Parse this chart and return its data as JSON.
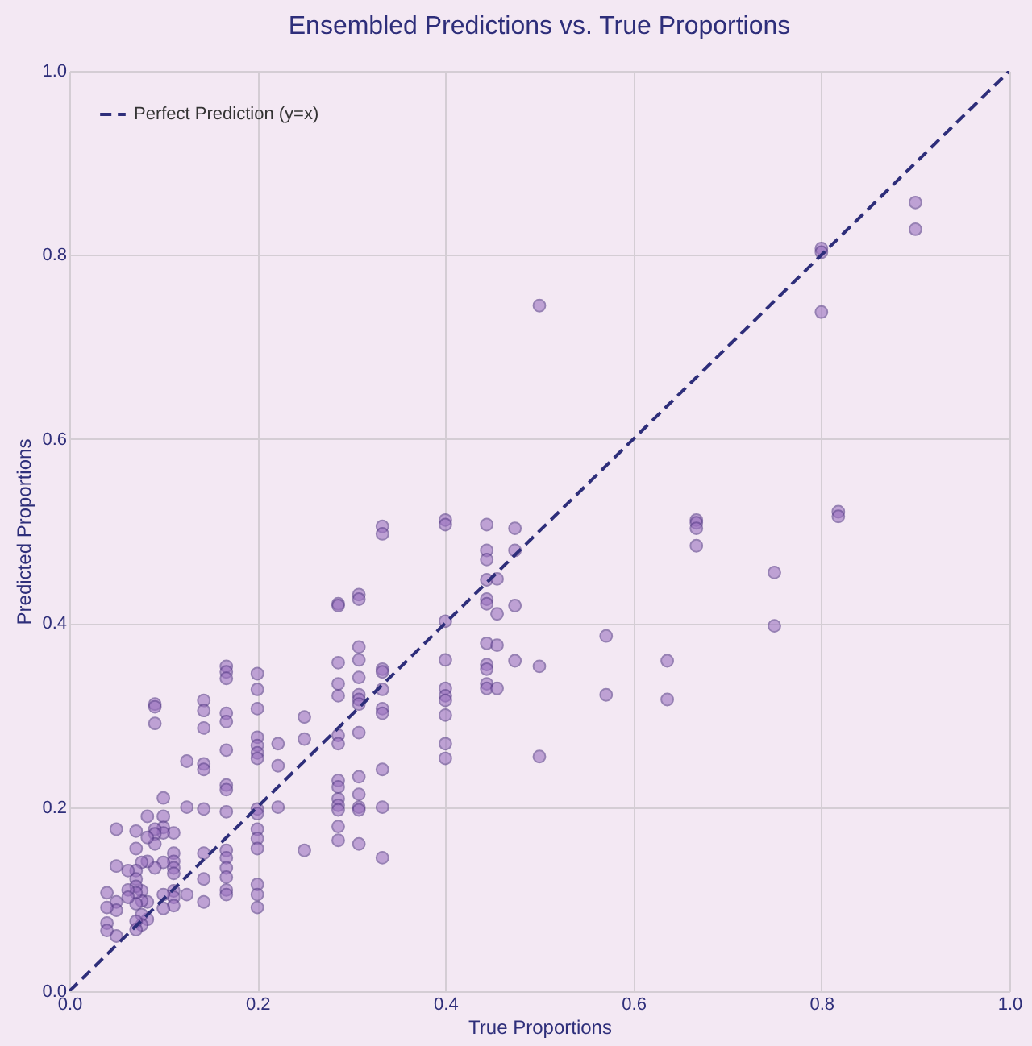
{
  "chart_data": {
    "type": "scatter",
    "title": "Ensembled Predictions vs. True Proportions",
    "xlabel": "True Proportions",
    "ylabel": "Predicted Proportions",
    "xlim": [
      0,
      1
    ],
    "ylim": [
      0,
      1
    ],
    "xticks": [
      {
        "value": 0,
        "label": "0.0"
      },
      0.2,
      0.4,
      0.6,
      0.8,
      {
        "value": 1,
        "label": "1.0"
      }
    ],
    "yticks": [
      {
        "value": 0,
        "label": "0.0"
      },
      0.2,
      0.4,
      0.6,
      0.8,
      {
        "value": 1,
        "label": "1.0"
      }
    ],
    "grid": true,
    "legend": "top left",
    "series": [
      {
        "color": "#9b72c0",
        "marker": "circle",
        "x": [
          0.2,
          0.2,
          0.2,
          0.2,
          0.2,
          0.2,
          0.2,
          0.2,
          0.2,
          0.2,
          0.2,
          0.2,
          0.2,
          0.2,
          0.2,
          0.167,
          0.167,
          0.167,
          0.167,
          0.167,
          0.167,
          0.167,
          0.167,
          0.167,
          0.167,
          0.167,
          0.167,
          0.167,
          0.167,
          0.167,
          0.143,
          0.143,
          0.143,
          0.143,
          0.143,
          0.143,
          0.143,
          0.143,
          0.143,
          0.125,
          0.125,
          0.125,
          0.111,
          0.111,
          0.111,
          0.111,
          0.111,
          0.111,
          0.111,
          0.111,
          0.1,
          0.1,
          0.1,
          0.1,
          0.1,
          0.1,
          0.1,
          0.091,
          0.091,
          0.091,
          0.091,
          0.091,
          0.091,
          0.091,
          0.083,
          0.083,
          0.083,
          0.083,
          0.083,
          0.077,
          0.077,
          0.077,
          0.077,
          0.077,
          0.071,
          0.071,
          0.071,
          0.071,
          0.071,
          0.071,
          0.071,
          0.071,
          0.071,
          0.0625,
          0.0625,
          0.0625,
          0.05,
          0.05,
          0.05,
          0.05,
          0.05,
          0.04,
          0.04,
          0.04,
          0.04,
          0.25,
          0.25,
          0.25,
          0.222,
          0.222,
          0.222,
          0.286,
          0.286,
          0.286,
          0.286,
          0.286,
          0.286,
          0.286,
          0.286,
          0.286,
          0.286,
          0.286,
          0.286,
          0.286,
          0.286,
          0.308,
          0.308,
          0.308,
          0.308,
          0.308,
          0.308,
          0.308,
          0.308,
          0.308,
          0.308,
          0.308,
          0.308,
          0.308,
          0.308,
          0.333,
          0.333,
          0.333,
          0.333,
          0.333,
          0.333,
          0.333,
          0.333,
          0.333,
          0.333,
          0.4,
          0.4,
          0.4,
          0.4,
          0.4,
          0.4,
          0.4,
          0.4,
          0.4,
          0.4,
          0.444,
          0.444,
          0.444,
          0.444,
          0.444,
          0.444,
          0.444,
          0.444,
          0.444,
          0.444,
          0.444,
          0.455,
          0.455,
          0.455,
          0.455,
          0.474,
          0.474,
          0.474,
          0.474,
          0.5,
          0.5,
          0.5,
          0.571,
          0.571,
          0.636,
          0.636,
          0.667,
          0.667,
          0.667,
          0.667,
          0.75,
          0.75,
          0.8,
          0.8,
          0.8,
          0.818,
          0.818,
          0.9,
          0.9
        ],
        "values": [
          0.345,
          0.328,
          0.307,
          0.276,
          0.267,
          0.259,
          0.253,
          0.198,
          0.193,
          0.176,
          0.166,
          0.155,
          0.116,
          0.105,
          0.091,
          0.353,
          0.347,
          0.34,
          0.302,
          0.293,
          0.262,
          0.224,
          0.219,
          0.195,
          0.153,
          0.145,
          0.134,
          0.124,
          0.11,
          0.105,
          0.316,
          0.305,
          0.286,
          0.247,
          0.241,
          0.198,
          0.15,
          0.122,
          0.097,
          0.25,
          0.2,
          0.105,
          0.172,
          0.15,
          0.141,
          0.134,
          0.128,
          0.109,
          0.102,
          0.093,
          0.21,
          0.19,
          0.178,
          0.172,
          0.14,
          0.105,
          0.09,
          0.312,
          0.309,
          0.291,
          0.176,
          0.171,
          0.16,
          0.134,
          0.19,
          0.167,
          0.141,
          0.097,
          0.078,
          0.14,
          0.109,
          0.098,
          0.083,
          0.072,
          0.174,
          0.155,
          0.131,
          0.122,
          0.114,
          0.107,
          0.095,
          0.076,
          0.067,
          0.131,
          0.11,
          0.102,
          0.176,
          0.136,
          0.097,
          0.088,
          0.06,
          0.107,
          0.091,
          0.074,
          0.066,
          0.298,
          0.274,
          0.153,
          0.269,
          0.245,
          0.2,
          0.421,
          0.419,
          0.357,
          0.334,
          0.321,
          0.278,
          0.269,
          0.229,
          0.222,
          0.209,
          0.202,
          0.197,
          0.179,
          0.164,
          0.431,
          0.426,
          0.374,
          0.36,
          0.341,
          0.322,
          0.317,
          0.312,
          0.281,
          0.233,
          0.214,
          0.2,
          0.197,
          0.16,
          0.505,
          0.497,
          0.35,
          0.347,
          0.328,
          0.307,
          0.302,
          0.241,
          0.2,
          0.145,
          0.512,
          0.507,
          0.402,
          0.36,
          0.329,
          0.321,
          0.316,
          0.3,
          0.269,
          0.253,
          0.507,
          0.479,
          0.469,
          0.447,
          0.426,
          0.421,
          0.378,
          0.355,
          0.35,
          0.334,
          0.329,
          0.448,
          0.41,
          0.376,
          0.329,
          0.503,
          0.479,
          0.419,
          0.359,
          0.745,
          0.353,
          0.255,
          0.386,
          0.322,
          0.359,
          0.317,
          0.512,
          0.509,
          0.503,
          0.484,
          0.455,
          0.397,
          0.807,
          0.803,
          0.738,
          0.521,
          0.516,
          0.857,
          0.828
        ]
      },
      {
        "type": "line",
        "name": "Perfect Prediction (y=x)",
        "color": "#2e2e7a",
        "line_style": "dashed",
        "x": [
          0,
          1
        ],
        "values": [
          0,
          1
        ]
      }
    ]
  }
}
